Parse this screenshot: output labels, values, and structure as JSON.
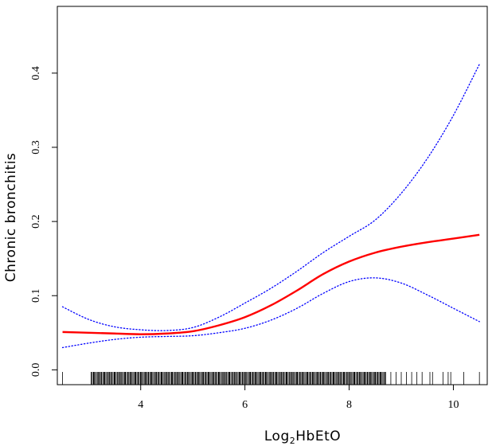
{
  "chart_data": {
    "type": "line",
    "xlabel_main": "Log",
    "xlabel_sub": "2",
    "xlabel_rest": "HbEtO",
    "ylabel": "Chronic bronchitis",
    "xlim": [
      2.4,
      10.65
    ],
    "ylim": [
      -0.02,
      0.49
    ],
    "x_ticks": [
      4,
      6,
      8,
      10
    ],
    "y_ticks": [
      0.0,
      0.1,
      0.2,
      0.3,
      0.4
    ],
    "x_tick_labels": [
      "4",
      "6",
      "8",
      "10"
    ],
    "y_tick_labels": [
      "0.0",
      "0.1",
      "0.2",
      "0.3",
      "0.4"
    ],
    "grid": false,
    "legend": "none",
    "series": [
      {
        "role": "estimate",
        "color": "#ff0000",
        "style": "solid",
        "x": [
          2.5,
          3.0,
          3.5,
          4.0,
          4.5,
          5.0,
          5.5,
          6.0,
          6.5,
          7.0,
          7.5,
          8.0,
          8.5,
          9.0,
          9.5,
          10.0,
          10.5
        ],
        "y": [
          0.051,
          0.05,
          0.049,
          0.048,
          0.049,
          0.052,
          0.06,
          0.071,
          0.087,
          0.107,
          0.129,
          0.146,
          0.158,
          0.166,
          0.172,
          0.177,
          0.182
        ]
      },
      {
        "role": "upper-ci",
        "color": "#0000ff",
        "style": "dotted",
        "x": [
          2.5,
          3.0,
          3.5,
          4.0,
          4.5,
          5.0,
          5.5,
          6.0,
          6.5,
          7.0,
          7.5,
          8.0,
          8.5,
          9.0,
          9.5,
          10.0,
          10.5
        ],
        "y": [
          0.085,
          0.068,
          0.058,
          0.054,
          0.053,
          0.057,
          0.071,
          0.09,
          0.11,
          0.133,
          0.158,
          0.18,
          0.202,
          0.238,
          0.285,
          0.343,
          0.412
        ]
      },
      {
        "role": "lower-ci",
        "color": "#0000ff",
        "style": "dotted",
        "x": [
          2.5,
          3.0,
          3.5,
          4.0,
          4.5,
          5.0,
          5.5,
          6.0,
          6.5,
          7.0,
          7.5,
          8.0,
          8.5,
          9.0,
          9.5,
          10.0,
          10.5
        ],
        "y": [
          0.03,
          0.036,
          0.041,
          0.044,
          0.045,
          0.046,
          0.05,
          0.056,
          0.067,
          0.083,
          0.103,
          0.119,
          0.124,
          0.117,
          0.101,
          0.083,
          0.065
        ]
      }
    ],
    "rug_x": [
      2.5,
      3.05,
      3.1,
      3.15,
      3.2,
      3.25,
      3.3,
      3.35,
      3.4,
      3.45,
      3.5,
      3.55,
      3.6,
      3.65,
      3.7,
      3.75,
      3.8,
      3.85,
      3.9,
      3.95,
      4.0,
      4.05,
      4.1,
      4.15,
      4.2,
      4.25,
      4.3,
      4.35,
      4.4,
      4.45,
      4.5,
      4.55,
      4.6,
      4.65,
      4.7,
      4.75,
      4.8,
      4.85,
      4.9,
      4.95,
      5.0,
      5.05,
      5.1,
      5.15,
      5.2,
      5.25,
      5.3,
      5.35,
      5.4,
      5.45,
      5.5,
      5.55,
      5.6,
      5.65,
      5.7,
      5.75,
      5.8,
      5.85,
      5.9,
      5.95,
      6.0,
      6.05,
      6.1,
      6.15,
      6.2,
      6.25,
      6.3,
      6.35,
      6.4,
      6.45,
      6.5,
      6.55,
      6.6,
      6.65,
      6.7,
      6.75,
      6.8,
      6.85,
      6.9,
      6.95,
      7.0,
      7.05,
      7.1,
      7.15,
      7.2,
      7.25,
      7.3,
      7.35,
      7.4,
      7.45,
      7.5,
      7.55,
      7.6,
      7.65,
      7.7,
      7.75,
      7.8,
      7.85,
      7.9,
      7.95,
      8.0,
      8.05,
      8.1,
      8.15,
      8.2,
      8.25,
      8.3,
      8.35,
      8.4,
      8.45,
      8.5,
      8.55,
      8.6,
      8.65,
      8.7,
      8.8,
      8.9,
      9.0,
      9.1,
      9.2,
      9.3,
      9.4,
      9.55,
      9.6,
      9.8,
      9.9,
      9.95,
      10.2,
      10.5
    ]
  }
}
